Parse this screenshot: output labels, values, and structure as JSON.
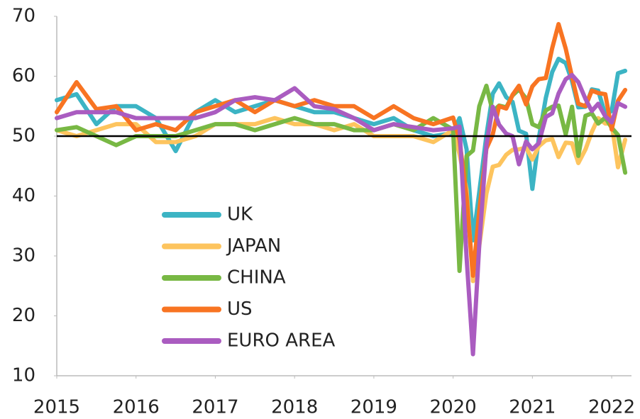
{
  "chart_data": {
    "type": "line",
    "x": [
      2015,
      2015.25,
      2015.5,
      2015.75,
      2016,
      2016.25,
      2016.5,
      2016.75,
      2017,
      2017.25,
      2017.5,
      2017.75,
      2018,
      2018.25,
      2018.5,
      2018.75,
      2019,
      2019.25,
      2019.5,
      2019.75,
      2020,
      2020.08,
      2020.17,
      2020.25,
      2020.33,
      2020.42,
      2020.5,
      2020.58,
      2020.67,
      2020.75,
      2020.83,
      2020.92,
      2021,
      2021.08,
      2021.17,
      2021.25,
      2021.33,
      2021.42,
      2021.5,
      2021.58,
      2021.67,
      2021.75,
      2021.83,
      2021.92,
      2022,
      2022.08,
      2022.17
    ],
    "series": [
      {
        "name": "UK",
        "color": "#3cb4c4",
        "values": [
          56,
          57,
          52,
          55,
          55,
          53,
          47.5,
          54,
          56,
          54,
          55,
          56,
          55,
          54,
          54,
          53,
          52,
          53,
          51,
          50,
          50.5,
          53,
          47.8,
          32.6,
          40.7,
          50.1,
          57.1,
          58.8,
          56.5,
          55.7,
          50.9,
          50.4,
          41.2,
          49.6,
          56.4,
          60.7,
          62.9,
          62.2,
          59.2,
          54.8,
          54.9,
          57.8,
          57.6,
          53.6,
          54.2,
          60.5,
          60.9
        ]
      },
      {
        "name": "JAPAN",
        "color": "#fdc45e",
        "values": [
          51,
          50,
          51,
          52,
          52,
          49,
          49,
          50,
          52,
          52,
          52,
          53,
          52,
          52,
          51,
          52,
          50,
          50,
          50,
          49,
          51,
          47,
          41,
          25.8,
          31.7,
          40.4,
          44.9,
          45.2,
          46.9,
          47.7,
          47.8,
          48.1,
          46.1,
          48.3,
          49.3,
          49.5,
          46.5,
          48.9,
          48.8,
          45.5,
          47.8,
          50.7,
          53,
          52.1,
          52.1,
          44.8,
          49.4
        ]
      },
      {
        "name": "CHINA",
        "color": "#78b844",
        "values": [
          51,
          51.5,
          50,
          48.5,
          50,
          50,
          50,
          51,
          52,
          52,
          51,
          52,
          53,
          52,
          52,
          51,
          51,
          52,
          51,
          53,
          51.1,
          27.5,
          46.7,
          47.6,
          55,
          58.4,
          54.1,
          55.1,
          54.8,
          56.8,
          57.8,
          56.3,
          52,
          51.5,
          54.3,
          54.9,
          55.1,
          50.3,
          54.9,
          46.7,
          53.4,
          53.8,
          52.1,
          53.1,
          51.4,
          50.2,
          43.9
        ]
      },
      {
        "name": "US",
        "color": "#f87422",
        "values": [
          54,
          59,
          54.5,
          55,
          51,
          52,
          51,
          54,
          55,
          56,
          54,
          56,
          55,
          56,
          55,
          55,
          53,
          55,
          53,
          52,
          53.1,
          49.4,
          39.8,
          26.7,
          37.5,
          47.9,
          50.3,
          55,
          54.6,
          56.9,
          58.4,
          55.3,
          58.3,
          59.5,
          59.7,
          64.7,
          68.7,
          64.6,
          59.9,
          55.4,
          55,
          57.6,
          57.2,
          57,
          51.1,
          55.9,
          57.7
        ]
      },
      {
        "name": "EURO AREA",
        "color": "#aa5cc0",
        "values": [
          53,
          54,
          54,
          54,
          53,
          53,
          53,
          53,
          54,
          56,
          56.5,
          56,
          58,
          55,
          54.5,
          53,
          51,
          52,
          51.5,
          51,
          51.3,
          51.6,
          29.7,
          13.6,
          31.9,
          48.5,
          54.9,
          51.9,
          50.4,
          50,
          45.3,
          49.1,
          47.8,
          48.8,
          53.2,
          53.8,
          57.1,
          59.5,
          60.2,
          59,
          56.2,
          54.2,
          55.4,
          53.3,
          52.3,
          55.5,
          54.9
        ]
      }
    ],
    "xlim": [
      2015,
      2022.25
    ],
    "xticks": [
      2015,
      2016,
      2017,
      2018,
      2019,
      2020,
      2021,
      2022
    ],
    "ylim": [
      10,
      70
    ],
    "yticks": [
      10,
      20,
      30,
      40,
      50,
      60,
      70
    ],
    "reference_line": 50,
    "legend": "lower-left"
  }
}
